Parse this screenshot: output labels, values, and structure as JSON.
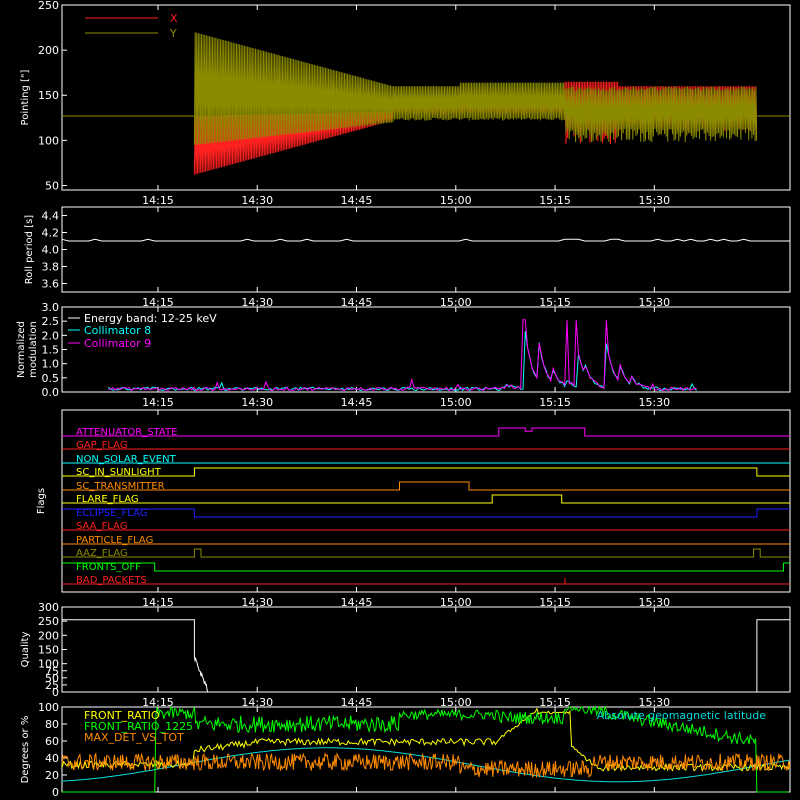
{
  "x_ticks": [
    "14:15",
    "14:30",
    "14:45",
    "15:00",
    "15:15",
    "15:30"
  ],
  "chart_data": [
    {
      "type": "line",
      "panel": "pointing",
      "ylabel": "Pointing [\"]",
      "ylim": [
        45,
        250
      ],
      "yticks": [
        "50",
        "100",
        "150",
        "200",
        "250"
      ],
      "xlim_minutes_after_1400": [
        0,
        110
      ],
      "legend_placement": "top-left",
      "series": [
        {
          "name": "X",
          "color": "#ff2020",
          "baseline": 127,
          "segments": [
            [
              0,
              20,
              127,
              0
            ],
            [
              20,
              50,
              127,
              "spread 62..122 narrowing"
            ],
            [
              50,
              76,
              127,
              "spread ~128..150"
            ],
            [
              76,
              84,
              130,
              "spread 95..165"
            ],
            [
              84,
              105,
              130,
              "spread 110..160"
            ],
            [
              105,
              110,
              127,
              0
            ]
          ]
        },
        {
          "name": "Y",
          "color": "#8b8b00",
          "baseline": 127,
          "segments": [
            [
              0,
              20,
              127,
              0
            ],
            [
              20,
              50,
              127,
              "spread 95..220 narrowing"
            ],
            [
              50,
              76,
              127,
              "spread 122..165"
            ],
            [
              76,
              105,
              130,
              "spread 98..160"
            ],
            [
              105,
              110,
              127,
              0
            ]
          ]
        }
      ]
    },
    {
      "type": "line",
      "panel": "roll",
      "ylabel": "Roll period [s]",
      "ylim": [
        3.5,
        4.5
      ],
      "yticks": [
        "3.6",
        "3.8",
        "4.0",
        "4.2",
        "4.4"
      ],
      "series": [
        {
          "name": "",
          "color": "#ffffff",
          "value": 4.1
        }
      ]
    },
    {
      "type": "line",
      "panel": "modulation",
      "ylabel": "Normalized modulation",
      "ylim": [
        0,
        3.0
      ],
      "yticks": [
        "0.0",
        "0.5",
        "1.0",
        "1.5",
        "2.0",
        "2.5",
        "3.0"
      ],
      "annotations": [
        "Energy band: 12-25 keV"
      ],
      "series": [
        {
          "name": "Collimator 8",
          "color": "#00ffff"
        },
        {
          "name": "Collimator 9",
          "color": "#ff00ff"
        }
      ],
      "events": [
        [
          67,
          0.2
        ],
        [
          70,
          2.0
        ],
        [
          72,
          1.4
        ],
        [
          74,
          0.6
        ],
        [
          76,
          0.3
        ],
        [
          78,
          1.2
        ],
        [
          79,
          0.4
        ],
        [
          82,
          2.0
        ],
        [
          84,
          0.8
        ],
        [
          86,
          0.3
        ]
      ]
    },
    {
      "type": "line",
      "panel": "flags",
      "ylabel": "Flags",
      "series": [
        {
          "name": "ATTENUATOR_STATE",
          "color": "#ff00ff"
        },
        {
          "name": "GAP_FLAG",
          "color": "#ff2020"
        },
        {
          "name": "NON_SOLAR_EVENT",
          "color": "#00ffff"
        },
        {
          "name": "SC_IN_SUNLIGHT",
          "color": "#ffff00"
        },
        {
          "name": "SC_TRANSMITTER",
          "color": "#ff8c00"
        },
        {
          "name": "FLARE_FLAG",
          "color": "#ffff00"
        },
        {
          "name": "ECLIPSE_FLAG",
          "color": "#2020ff"
        },
        {
          "name": "SAA_FLAG",
          "color": "#ff2020"
        },
        {
          "name": "PARTICLE_FLAG",
          "color": "#ff8c00"
        },
        {
          "name": "AAZ_FLAG",
          "color": "#8b8b00"
        },
        {
          "name": "FRONTS_OFF",
          "color": "#00ff00"
        },
        {
          "name": "BAD_PACKETS",
          "color": "#ff2020"
        }
      ]
    },
    {
      "type": "line",
      "panel": "quality",
      "ylabel": "Quality",
      "ylim": [
        0,
        300
      ],
      "yticks": [
        "0",
        "25",
        "50",
        "75",
        "100",
        "150",
        "200",
        "250",
        "300"
      ],
      "series": [
        {
          "name": "",
          "color": "#ffffff",
          "high": 255
        }
      ]
    },
    {
      "type": "line",
      "panel": "ratios",
      "ylabel": "Degrees or %",
      "ylim": [
        0,
        100
      ],
      "yticks": [
        "0",
        "20",
        "40",
        "60",
        "80",
        "100"
      ],
      "series": [
        {
          "name": "FRONT_RATIO",
          "color": "#ffff00"
        },
        {
          "name": "FRONT_RATIO_1225",
          "color": "#00ff00"
        },
        {
          "name": "MAX_DET_VS_TOT",
          "color": "#ff8c00"
        },
        {
          "name": "Absolute geomagnetic latitude",
          "color": "#00dddd"
        }
      ]
    }
  ]
}
